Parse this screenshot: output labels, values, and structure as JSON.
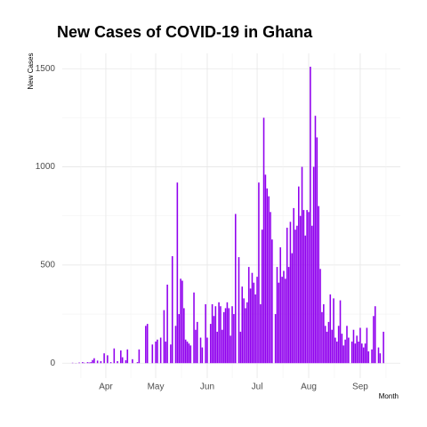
{
  "chart_data": {
    "type": "bar",
    "title": "New Cases of COVID-19 in Ghana",
    "x_label": "Month",
    "y_label": "New Cases",
    "color": "#9000ee",
    "grid": true,
    "ylim": [
      -76,
      1578
    ],
    "yticks": [
      0,
      500,
      1000,
      1500
    ],
    "categories": [
      null,
      null,
      null,
      null,
      null,
      null,
      null,
      null,
      null,
      null,
      null,
      null,
      null,
      null,
      null,
      null,
      null,
      null,
      null,
      null,
      "Apr",
      null,
      null,
      null,
      null,
      null,
      null,
      null,
      null,
      null,
      null,
      null,
      null,
      null,
      null,
      null,
      null,
      null,
      null,
      null,
      null,
      null,
      null,
      null,
      null,
      null,
      null,
      null,
      null,
      null,
      "May",
      null,
      null,
      null,
      null,
      null,
      null,
      null,
      null,
      null,
      null,
      null,
      null,
      null,
      null,
      null,
      null,
      null,
      null,
      null,
      null,
      null,
      null,
      null,
      null,
      null,
      null,
      null,
      null,
      null,
      null,
      "Jun",
      null,
      null,
      null,
      null,
      null,
      null,
      null,
      null,
      null,
      null,
      null,
      null,
      null,
      null,
      null,
      null,
      null,
      null,
      null,
      null,
      null,
      null,
      null,
      null,
      null,
      null,
      null,
      null,
      null,
      "Jul",
      null,
      null,
      null,
      null,
      null,
      null,
      null,
      null,
      null,
      null,
      null,
      null,
      null,
      null,
      null,
      null,
      null,
      null,
      null,
      null,
      null,
      null,
      null,
      null,
      null,
      null,
      null,
      null,
      null,
      null,
      "Aug",
      null,
      null,
      null,
      null,
      null,
      null,
      null,
      null,
      null,
      null,
      null,
      null,
      null,
      null,
      null,
      null,
      null,
      null,
      null,
      null,
      null,
      null,
      null,
      null,
      null,
      null,
      null,
      null,
      null,
      null,
      "Sep",
      null,
      null,
      null,
      null,
      null,
      null,
      null,
      null,
      null,
      null,
      null,
      null,
      null,
      null
    ],
    "values": [
      2,
      0,
      1,
      0,
      3,
      0,
      5,
      2,
      0,
      5,
      3,
      5,
      16,
      25,
      0,
      13,
      0,
      10,
      0,
      50,
      0,
      40,
      0,
      5,
      0,
      75,
      0,
      10,
      0,
      65,
      30,
      0,
      15,
      70,
      0,
      0,
      20,
      0,
      0,
      5,
      70,
      0,
      0,
      0,
      190,
      200,
      0,
      0,
      95,
      0,
      110,
      120,
      0,
      130,
      0,
      270,
      110,
      400,
      0,
      95,
      545,
      0,
      190,
      920,
      250,
      430,
      420,
      280,
      120,
      110,
      100,
      90,
      0,
      360,
      170,
      210,
      0,
      130,
      80,
      0,
      300,
      130,
      0,
      200,
      300,
      240,
      290,
      160,
      310,
      290,
      170,
      260,
      280,
      310,
      280,
      140,
      290,
      250,
      760,
      0,
      540,
      160,
      390,
      330,
      280,
      310,
      490,
      380,
      460,
      410,
      350,
      440,
      920,
      300,
      680,
      1250,
      960,
      890,
      850,
      770,
      630,
      0,
      250,
      490,
      410,
      590,
      440,
      470,
      430,
      690,
      490,
      720,
      560,
      790,
      680,
      700,
      900,
      750,
      1000,
      780,
      650,
      780,
      770,
      1510,
      700,
      1000,
      1260,
      1150,
      800,
      480,
      260,
      300,
      190,
      160,
      210,
      350,
      170,
      330,
      130,
      110,
      190,
      320,
      150,
      90,
      120,
      190,
      130,
      0,
      110,
      170,
      100,
      140,
      110,
      180,
      100,
      80,
      100,
      180,
      60,
      0,
      70,
      240,
      290,
      0,
      80,
      50,
      0,
      160
    ]
  }
}
